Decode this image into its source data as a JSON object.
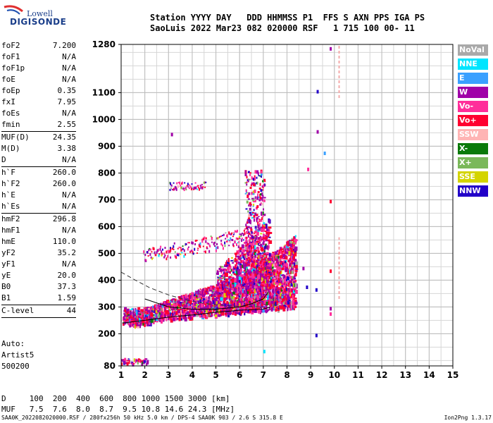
{
  "logo": {
    "line1": "Lowell",
    "line2": "DIGISONDE"
  },
  "header": {
    "labels": "Station YYYY DAY   DDD HHMMSS P1  FFS S AXN PPS IGA PS",
    "values": "SaoLuis 2022 Mar23 082 020000 RSF   1 715 100 00- 11"
  },
  "params": {
    "group1": [
      {
        "name": "foF2",
        "value": "7.200"
      },
      {
        "name": "foF1",
        "value": "N/A"
      },
      {
        "name": "foF1p",
        "value": "N/A"
      },
      {
        "name": "foE",
        "value": "N/A"
      },
      {
        "name": "foEp",
        "value": "0.35"
      },
      {
        "name": "fxI",
        "value": "7.95"
      },
      {
        "name": "foEs",
        "value": "N/A"
      },
      {
        "name": "fmin",
        "value": "2.55"
      }
    ],
    "group2": [
      {
        "name": "MUF(D)",
        "value": "24.35"
      },
      {
        "name": "M(D)",
        "value": "3.38"
      },
      {
        "name": "D",
        "value": "N/A"
      }
    ],
    "group3": [
      {
        "name": "h`F",
        "value": "260.0"
      },
      {
        "name": "h`F2",
        "value": "260.0"
      },
      {
        "name": "h`E",
        "value": "N/A"
      },
      {
        "name": "h`Es",
        "value": "N/A"
      }
    ],
    "group4": [
      {
        "name": "hmF2",
        "value": "296.8"
      },
      {
        "name": "hmF1",
        "value": "N/A"
      },
      {
        "name": "hmE",
        "value": "110.0"
      },
      {
        "name": "yF2",
        "value": "35.2"
      },
      {
        "name": "yF1",
        "value": "N/A"
      },
      {
        "name": "yE",
        "value": "20.0"
      },
      {
        "name": "B0",
        "value": "37.3"
      },
      {
        "name": "B1",
        "value": "1.59"
      }
    ],
    "group5": [
      {
        "name": "C-level",
        "value": "44"
      }
    ]
  },
  "auto": {
    "line1": "Auto:",
    "line2": "Artist5",
    "line3": "500200"
  },
  "legend": [
    {
      "label": "NoVal",
      "color": "#a9a9a9"
    },
    {
      "label": "NNE",
      "color": "#00e5ff"
    },
    {
      "label": "E",
      "color": "#3aa0ff"
    },
    {
      "label": "W",
      "color": "#a000a8"
    },
    {
      "label": "Vo-",
      "color": "#ff2e9a"
    },
    {
      "label": "Vo+",
      "color": "#ff0030"
    },
    {
      "label": "SSW",
      "color": "#ffb4b4"
    },
    {
      "label": "X-",
      "color": "#0a7a0a"
    },
    {
      "label": "X+",
      "color": "#7ab85a"
    },
    {
      "label": "SSE",
      "color": "#d4d400"
    },
    {
      "label": "NNW",
      "color": "#2200c8"
    }
  ],
  "footer": {
    "dist": "D     100  200  400  600  800 1000 1500 3000 [km]",
    "muf": "MUF   7.5  7.6  8.0  8.7  9.5 10.8 14.6 24.3 [MHz]"
  },
  "bottom": {
    "left": "SAA0K_2022082020000.RSF / 280fx256h 50 kHz 5.0 km / DPS-4 SAA0K 903 / 2.6 S 315.8 E",
    "right": "Ion2Png 1.3.17"
  },
  "chart_data": {
    "type": "scatter",
    "xlim": [
      1,
      15
    ],
    "ylim": [
      80,
      1280
    ],
    "xticks": [
      1,
      2,
      3,
      4,
      5,
      6,
      7,
      8,
      9,
      10,
      11,
      12,
      13,
      14,
      15
    ],
    "yticks": [
      80,
      200,
      300,
      400,
      500,
      600,
      700,
      800,
      900,
      1000,
      1100,
      1280
    ],
    "grid": true,
    "trace_profile": {
      "x": [
        2.0,
        3.0,
        4.0,
        5.0,
        6.0,
        6.5,
        7.0,
        7.2
      ],
      "y": [
        330,
        300,
        292,
        292,
        300,
        312,
        330,
        355
      ]
    },
    "trace_lower": {
      "x": [
        1.05,
        2.0,
        3.0,
        4.0,
        5.0,
        6.0,
        7.0,
        7.3
      ],
      "y": [
        240,
        250,
        262,
        270,
        280,
        288,
        292,
        300
      ]
    },
    "profile_dashed": {
      "x": [
        1.0,
        1.6,
        2.2,
        3.0,
        3.8,
        4.6,
        5.4,
        6.2,
        7.0
      ],
      "y": [
        430,
        400,
        372,
        345,
        325,
        312,
        305,
        302,
        300
      ]
    },
    "ssw_bars": [
      {
        "x": 10.2,
        "y": [
          1080,
          1275
        ]
      },
      {
        "x": 10.2,
        "y": [
          330,
          560
        ]
      }
    ]
  }
}
